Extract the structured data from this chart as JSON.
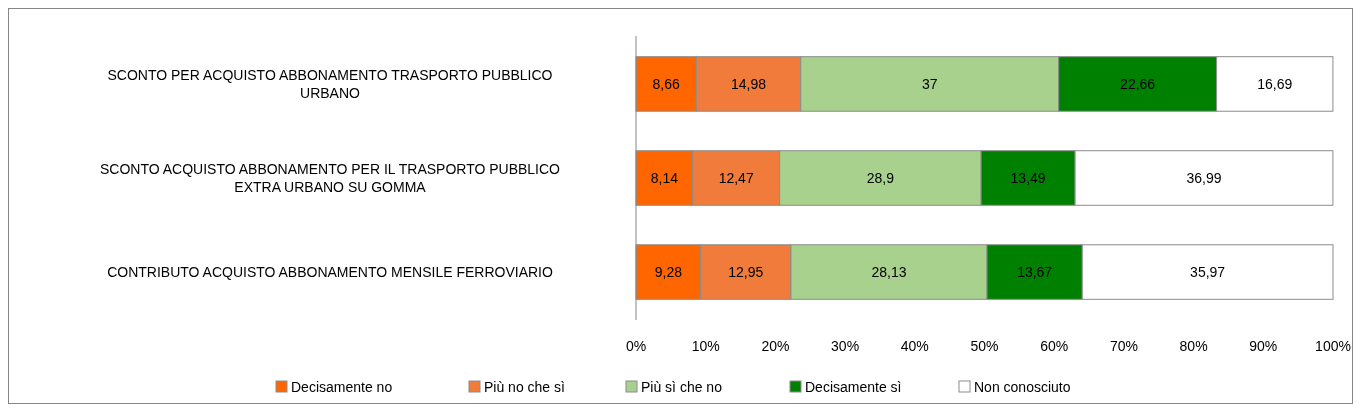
{
  "chart_data": {
    "type": "bar",
    "orientation": "horizontal",
    "stacked": true,
    "categories": [
      "SCONTO PER ACQUISTO ABBONAMENTO TRASPORTO PUBBLICO URBANO",
      "SCONTO ACQUISTO ABBONAMENTO PER IL TRASPORTO PUBBLICO EXTRA URBANO SU GOMMA",
      "CONTRIBUTO ACQUISTO ABBONAMENTO MENSILE FERROVIARIO"
    ],
    "series": [
      {
        "name": "Decisamente no",
        "color": "#ff6600",
        "values": [
          8.66,
          8.14,
          9.28
        ],
        "value_labels": [
          "8,66",
          "8,14",
          "9,28"
        ]
      },
      {
        "name": "Più no che sì",
        "color": "#f07b3a",
        "values": [
          14.98,
          12.47,
          12.95
        ],
        "value_labels": [
          "14,98",
          "12,47",
          "12,95"
        ]
      },
      {
        "name": "Più sì che no",
        "color": "#a9d18e",
        "values": [
          37,
          28.9,
          28.13
        ],
        "value_labels": [
          "37",
          "28,9",
          "28,13"
        ]
      },
      {
        "name": "Decisamente sì",
        "color": "#008000",
        "values": [
          22.66,
          13.49,
          13.67
        ],
        "value_labels": [
          "22,66",
          "13,49",
          "13,67"
        ]
      },
      {
        "name": "Non conosciuto",
        "color": "#ffffff",
        "values": [
          16.69,
          36.99,
          35.97
        ],
        "value_labels": [
          "16,69",
          "36,99",
          "35,97"
        ]
      }
    ],
    "xlim": [
      0,
      100
    ],
    "xticks": [
      {
        "value": 0,
        "label": "0%"
      },
      {
        "value": 10,
        "label": "10%"
      },
      {
        "value": 20,
        "label": "20%"
      },
      {
        "value": 30,
        "label": "30%"
      },
      {
        "value": 40,
        "label": "40%"
      },
      {
        "value": 50,
        "label": "50%"
      },
      {
        "value": 60,
        "label": "60%"
      },
      {
        "value": 70,
        "label": "70%"
      },
      {
        "value": 80,
        "label": "80%"
      },
      {
        "value": 90,
        "label": "90%"
      },
      {
        "value": 100,
        "label": "100%"
      }
    ],
    "legend": "bottom"
  }
}
